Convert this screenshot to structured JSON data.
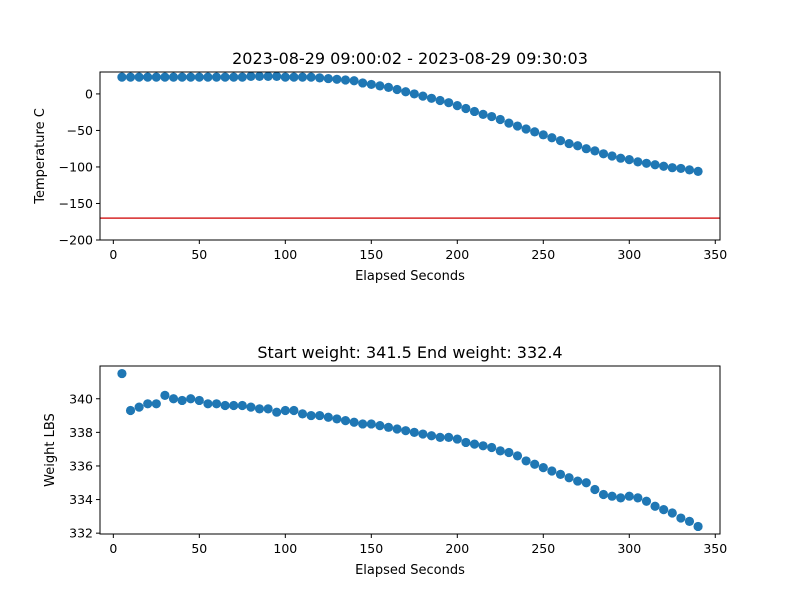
{
  "figure": {
    "background": "#ffffff",
    "marker_color": "#1f77b4",
    "refline_color": "#d62728"
  },
  "chart_data": [
    {
      "type": "scatter",
      "title": "2023-08-29 09:00:02 - 2023-08-29 09:30:03",
      "xlabel": "Elapsed Seconds",
      "ylabel": "Temperature C",
      "xlim": [
        -7.75,
        352.75
      ],
      "ylim": [
        -200,
        30
      ],
      "xticks": [
        0,
        50,
        100,
        150,
        200,
        250,
        300,
        350
      ],
      "yticks": [
        0,
        -50,
        -100,
        -150,
        -200
      ],
      "grid": false,
      "reference_line": {
        "y": -170
      },
      "x": [
        5,
        10,
        15,
        20,
        25,
        30,
        35,
        40,
        45,
        50,
        55,
        60,
        65,
        70,
        75,
        80,
        85,
        90,
        95,
        100,
        105,
        110,
        115,
        120,
        125,
        130,
        135,
        140,
        145,
        150,
        155,
        160,
        165,
        170,
        175,
        180,
        185,
        190,
        195,
        200,
        205,
        210,
        215,
        220,
        225,
        230,
        235,
        240,
        245,
        250,
        255,
        260,
        265,
        270,
        275,
        280,
        285,
        290,
        295,
        300,
        305,
        310,
        315,
        320,
        325,
        330,
        335,
        340
      ],
      "y": [
        23,
        23,
        23,
        23,
        23,
        23,
        23,
        23,
        23,
        23,
        23,
        23,
        23,
        23,
        23,
        24,
        24,
        24,
        24,
        23,
        23,
        23,
        23,
        22,
        21,
        20,
        19,
        18,
        15,
        13,
        11,
        9,
        6,
        3,
        0,
        -3,
        -6,
        -9,
        -12,
        -16,
        -20,
        -24,
        -28,
        -31,
        -35,
        -40,
        -44,
        -48,
        -52,
        -56,
        -60,
        -64,
        -68,
        -71,
        -75,
        -78,
        -82,
        -85,
        -88,
        -90,
        -93,
        -95,
        -97,
        -99,
        -101,
        -102,
        -104,
        -106
      ]
    },
    {
      "type": "scatter",
      "title": "Start weight: 341.5 End weight: 332.4",
      "xlabel": "Elapsed Seconds",
      "ylabel": "Weight LBS",
      "xlim": [
        -7.75,
        352.75
      ],
      "ylim": [
        331.95,
        341.95
      ],
      "xticks": [
        0,
        50,
        100,
        150,
        200,
        250,
        300,
        350
      ],
      "yticks": [
        340,
        338,
        336,
        334,
        332
      ],
      "grid": false,
      "x": [
        5,
        10,
        15,
        20,
        25,
        30,
        35,
        40,
        45,
        50,
        55,
        60,
        65,
        70,
        75,
        80,
        85,
        90,
        95,
        100,
        105,
        110,
        115,
        120,
        125,
        130,
        135,
        140,
        145,
        150,
        155,
        160,
        165,
        170,
        175,
        180,
        185,
        190,
        195,
        200,
        205,
        210,
        215,
        220,
        225,
        230,
        235,
        240,
        245,
        250,
        255,
        260,
        265,
        270,
        275,
        280,
        285,
        290,
        295,
        300,
        305,
        310,
        315,
        320,
        325,
        330,
        335,
        340
      ],
      "y": [
        341.5,
        339.3,
        339.5,
        339.7,
        339.7,
        340.2,
        340.0,
        339.9,
        340.0,
        339.9,
        339.7,
        339.7,
        339.6,
        339.6,
        339.6,
        339.5,
        339.4,
        339.4,
        339.2,
        339.3,
        339.3,
        339.1,
        339.0,
        339.0,
        338.9,
        338.8,
        338.7,
        338.6,
        338.5,
        338.5,
        338.4,
        338.3,
        338.2,
        338.1,
        338.0,
        337.9,
        337.8,
        337.7,
        337.7,
        337.6,
        337.4,
        337.3,
        337.2,
        337.1,
        336.9,
        336.8,
        336.6,
        336.3,
        336.1,
        335.9,
        335.7,
        335.5,
        335.3,
        335.1,
        335.0,
        334.6,
        334.3,
        334.2,
        334.1,
        334.2,
        334.1,
        333.9,
        333.6,
        333.4,
        333.2,
        332.9,
        332.7,
        332.4
      ]
    }
  ]
}
